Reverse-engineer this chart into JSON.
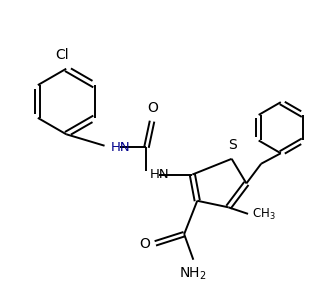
{
  "background_color": "#ffffff",
  "line_color": "#000000",
  "blue_color": "#00008B",
  "line_width": 1.4,
  "figsize": [
    3.29,
    2.98
  ],
  "dpi": 100,
  "xlim": [
    0,
    10
  ],
  "ylim": [
    0,
    9
  ]
}
